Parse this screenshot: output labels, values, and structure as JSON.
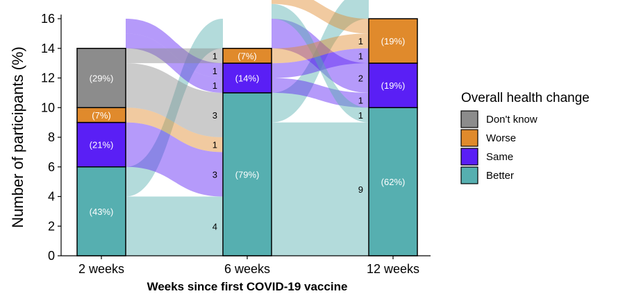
{
  "chart_data": {
    "type": "bar",
    "subtype": "alluvial",
    "ylabel": "Number of participants (%)",
    "xlabel": "Weeks since first COVID-19 vaccine",
    "ylim": [
      0,
      16
    ],
    "yticks": [
      0,
      2,
      4,
      6,
      8,
      10,
      12,
      14,
      16
    ],
    "categories": [
      "2 weeks",
      "6 weeks",
      "12 weeks"
    ],
    "legend": {
      "title": "Overall health change",
      "placement": "right",
      "items": [
        {
          "key": "dontknow",
          "label": "Don't know",
          "color": "#8c8c8c"
        },
        {
          "key": "worse",
          "label": "Worse",
          "color": "#e08a2c"
        },
        {
          "key": "same",
          "label": "Same",
          "color": "#5a1ff5"
        },
        {
          "key": "better",
          "label": "Better",
          "color": "#56afb0"
        }
      ]
    },
    "stack_order": [
      "better",
      "same",
      "worse",
      "dontknow"
    ],
    "columns": [
      {
        "label": "2 weeks",
        "segments": [
          {
            "key": "better",
            "value": 6,
            "pct": "(43%)"
          },
          {
            "key": "same",
            "value": 3,
            "pct": "(21%)"
          },
          {
            "key": "worse",
            "value": 1,
            "pct": "(7%)"
          },
          {
            "key": "dontknow",
            "value": 4,
            "pct": "(29%)"
          }
        ]
      },
      {
        "label": "6 weeks",
        "segments": [
          {
            "key": "better",
            "value": 11,
            "pct": "(79%)"
          },
          {
            "key": "same",
            "value": 2,
            "pct": "(14%)"
          },
          {
            "key": "worse",
            "value": 1,
            "pct": "(7%)"
          }
        ]
      },
      {
        "label": "12 weeks",
        "segments": [
          {
            "key": "better",
            "value": 10,
            "pct": "(62%)"
          },
          {
            "key": "same",
            "value": 3,
            "pct": "(19%)"
          },
          {
            "key": "worse",
            "value": 3,
            "pct": "(19%)"
          }
        ]
      }
    ],
    "flows_1": [
      {
        "from": "better",
        "to": "better",
        "value": 4,
        "label": "4"
      },
      {
        "from": "better",
        "to": "missing",
        "value": 2,
        "label": ""
      },
      {
        "from": "same",
        "to": "better",
        "value": 3,
        "label": "3"
      },
      {
        "from": "worse",
        "to": "better",
        "value": 1,
        "label": "1"
      },
      {
        "from": "dontknow",
        "to": "better",
        "value": 3,
        "label": "3"
      },
      {
        "from": "missing",
        "to": "same",
        "value": 1,
        "label": "1"
      },
      {
        "from": "missing",
        "to": "same",
        "value": 1,
        "label": "1"
      },
      {
        "from": "dontknow",
        "to": "worse",
        "value": 1,
        "label": "1"
      }
    ],
    "flows_2": [
      {
        "from": "better",
        "to": "better",
        "value": 9,
        "label": "9"
      },
      {
        "from": "better",
        "to": "missing",
        "value": 2,
        "label": ""
      },
      {
        "from": "same",
        "to": "same",
        "value": 1,
        "label": "1"
      },
      {
        "from": "missing",
        "to": "same",
        "value": 2,
        "label": "2"
      },
      {
        "from": "same",
        "to": "worse",
        "value": 1,
        "label": "1"
      },
      {
        "from": "missing",
        "to": "better",
        "value": 1,
        "label": "1"
      },
      {
        "from": "worse",
        "to": "worse",
        "value": 1,
        "label": "1"
      },
      {
        "from": "missing",
        "to": "worse",
        "value": 1,
        "label": ""
      }
    ]
  }
}
